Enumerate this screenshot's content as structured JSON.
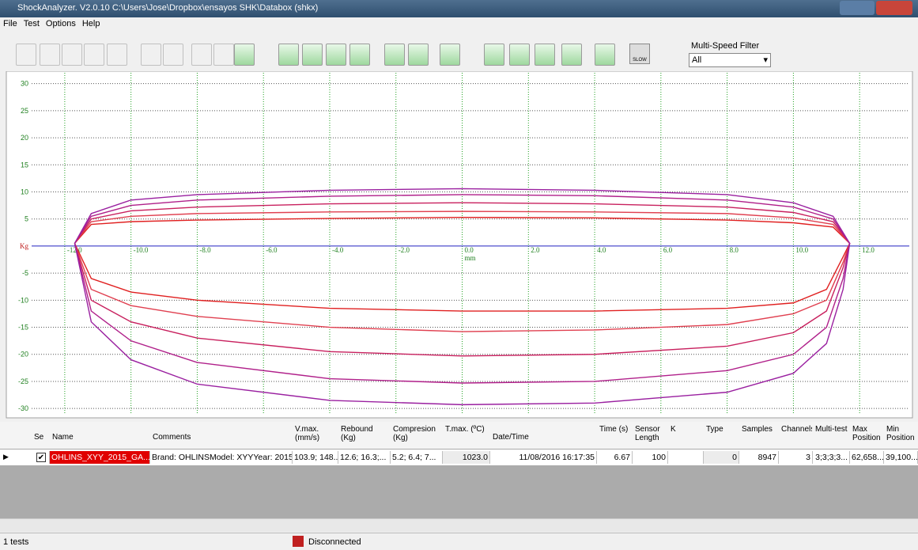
{
  "window": {
    "title": "ShockAnalyzer. V2.0.10  C:\\Users\\Jose\\Dropbox\\ensayos SHK\\Databox (shkx)"
  },
  "menu": [
    "File",
    "Test",
    "Options",
    "Help"
  ],
  "toolbar": {
    "filter_label": "Multi-Speed Filter",
    "filter_value": "All",
    "slow_icon": "SLOW"
  },
  "chart_data": {
    "type": "line",
    "x_label": "mm",
    "grid": true,
    "xlim": [
      -13,
      13.5
    ],
    "ylim": [
      -31,
      32
    ],
    "xticks": [
      {
        "value": -12,
        "label": "-12.0"
      },
      {
        "value": -10,
        "label": "-10.0"
      },
      {
        "value": -8,
        "label": "-8.0"
      },
      {
        "value": -6,
        "label": "-6.0"
      },
      {
        "value": -4,
        "label": "-4.0"
      },
      {
        "value": -2,
        "label": "-2.0"
      },
      {
        "value": 0,
        "label": "0.0"
      },
      {
        "value": 2,
        "label": "2.0"
      },
      {
        "value": 4,
        "label": "4.0"
      },
      {
        "value": 6,
        "label": "6.0"
      },
      {
        "value": 8,
        "label": "8.0"
      },
      {
        "value": 10,
        "label": "10.0"
      },
      {
        "value": 12,
        "label": "12.0"
      }
    ],
    "yticks": [
      30,
      25,
      20,
      15,
      10,
      5,
      {
        "value": 0,
        "label": "Kg"
      },
      -5,
      -10,
      -15,
      -20,
      -25,
      -30
    ],
    "series": [
      {
        "color": "#e02020",
        "x": [
          -11.7,
          -11.2,
          -10,
          -8,
          -4,
          0,
          4,
          8,
          10,
          11.2,
          11.7,
          11.5,
          11,
          10,
          8,
          4,
          0,
          -4,
          -8,
          -10,
          -11.2,
          -11.7
        ],
        "values": [
          0.5,
          4,
          4.5,
          4.8,
          5.1,
          5.3,
          5.2,
          4.8,
          4.3,
          3.5,
          0.5,
          -2,
          -8,
          -10.5,
          -11.5,
          -12,
          -12,
          -11.5,
          -10,
          -8.5,
          -6,
          0.5
        ]
      },
      {
        "color": "#e04050",
        "x": [
          -11.7,
          -11.2,
          -10,
          -8,
          -4,
          0,
          4,
          8,
          10,
          11.2,
          11.7,
          11.5,
          11,
          10,
          8,
          4,
          0,
          -4,
          -8,
          -10,
          -11.2,
          -11.7
        ],
        "values": [
          0.5,
          4.5,
          5.5,
          6,
          6.3,
          6.4,
          6.3,
          6,
          5.2,
          4,
          0.5,
          -3,
          -10,
          -12.5,
          -14.5,
          -15.5,
          -15.8,
          -15,
          -13,
          -11,
          -8,
          0.5
        ]
      },
      {
        "color": "#c8205e",
        "x": [
          -11.7,
          -11.2,
          -10,
          -8,
          -4,
          0,
          4,
          8,
          10,
          11.2,
          11.7,
          11.5,
          11,
          10,
          8,
          4,
          0,
          -4,
          -8,
          -10,
          -11.2,
          -11.7
        ],
        "values": [
          0.5,
          5,
          6.5,
          7.2,
          7.8,
          8,
          7.8,
          7.2,
          6.2,
          4.5,
          0.5,
          -4,
          -12,
          -16,
          -18.5,
          -20,
          -20.3,
          -19.5,
          -17,
          -14,
          -10,
          0.5
        ]
      },
      {
        "color": "#b0208a",
        "x": [
          -11.7,
          -11.2,
          -10,
          -8,
          -4,
          0,
          4,
          8,
          10,
          11.2,
          11.7,
          11.5,
          11,
          10,
          8,
          4,
          0,
          -4,
          -8,
          -10,
          -11.2,
          -11.7
        ],
        "values": [
          0.5,
          5.5,
          7.5,
          8.5,
          9.2,
          9.5,
          9.3,
          8.5,
          7.2,
          5,
          0.5,
          -6,
          -15,
          -20,
          -23,
          -25,
          -25.3,
          -24.5,
          -21.5,
          -17.5,
          -12,
          0.5
        ]
      },
      {
        "color": "#9a20a0",
        "x": [
          -11.7,
          -11.2,
          -10,
          -8,
          -4,
          0,
          4,
          8,
          10,
          11.2,
          11.7,
          11.5,
          11,
          10,
          8,
          4,
          0,
          -4,
          -8,
          -10,
          -11.2,
          -11.7
        ],
        "values": [
          0.5,
          6,
          8.5,
          9.5,
          10.3,
          10.6,
          10.3,
          9.5,
          8,
          5.5,
          0.5,
          -8,
          -18,
          -23.5,
          -27,
          -29,
          -29.3,
          -28.5,
          -25.5,
          -21,
          -14,
          0.5
        ]
      }
    ]
  },
  "table": {
    "headers": [
      "Se",
      "Name",
      "Comments",
      "V.max. (mm/s)",
      "Rebound (Kg)",
      "Compresion (Kg)",
      "T.max. (ºC)",
      "Date/Time",
      "Time (s)",
      "Sensor Length",
      "K",
      "Type",
      "Samples",
      "Channels",
      "Multi-test",
      "Max Position",
      "Min Position"
    ],
    "rows": [
      [
        null,
        "OHLINS_XYY_2015_GA...",
        "Brand: OHLINSModel: XYYYear: 2015...",
        "103.9; 148...",
        "12.6; 16.3;...",
        "5.2; 6.4; 7...",
        "1023.0",
        "11/08/2016 16:17:35",
        "6.67",
        "100",
        null,
        "0",
        "8947",
        "3",
        "3;3;3;3...",
        "62,658...",
        "39,100..."
      ]
    ]
  },
  "status": {
    "count": "1 tests",
    "connection": "Disconnected"
  }
}
